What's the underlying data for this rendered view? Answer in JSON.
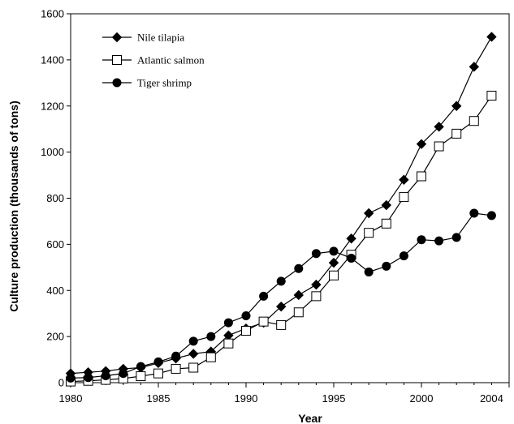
{
  "chart_data": {
    "type": "line",
    "xlabel": "Year",
    "ylabel": "Culture production (thousands of tons)",
    "xlim": [
      1980,
      2005
    ],
    "ylim": [
      0,
      1600
    ],
    "x_ticks": [
      1980,
      1985,
      1990,
      1995,
      2000,
      2004
    ],
    "y_ticks": [
      0,
      200,
      400,
      600,
      800,
      1000,
      1200,
      1400,
      1600
    ],
    "grid": false,
    "legend_position": "top-left",
    "x": [
      1980,
      1981,
      1982,
      1983,
      1984,
      1985,
      1986,
      1987,
      1988,
      1989,
      1990,
      1991,
      1992,
      1993,
      1994,
      1995,
      1996,
      1997,
      1998,
      1999,
      2000,
      2001,
      2002,
      2003,
      2004
    ],
    "series": [
      {
        "name": "Nile tilapia",
        "marker": "diamond",
        "color": "#000000",
        "values": [
          40,
          45,
          50,
          60,
          65,
          85,
          105,
          125,
          135,
          205,
          235,
          260,
          330,
          380,
          425,
          520,
          625,
          735,
          770,
          880,
          1035,
          1110,
          1200,
          1370,
          1500
        ]
      },
      {
        "name": "Atlantic salmon",
        "marker": "open-square",
        "color": "#000000",
        "values": [
          5,
          8,
          12,
          18,
          28,
          40,
          60,
          65,
          110,
          170,
          225,
          265,
          250,
          305,
          375,
          465,
          555,
          650,
          690,
          805,
          895,
          1025,
          1080,
          1135,
          1245
        ]
      },
      {
        "name": "Tiger shrimp",
        "marker": "filled-circle",
        "color": "#000000",
        "values": [
          20,
          22,
          30,
          40,
          70,
          90,
          115,
          180,
          200,
          260,
          290,
          375,
          440,
          495,
          560,
          570,
          540,
          480,
          505,
          550,
          620,
          615,
          630,
          735,
          725
        ]
      }
    ]
  }
}
